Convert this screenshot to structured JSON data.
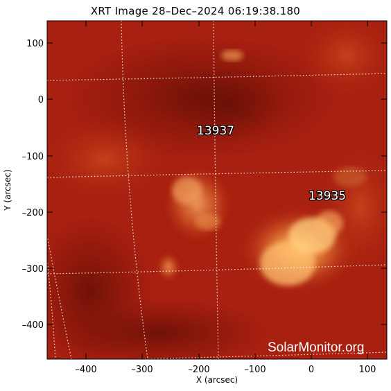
{
  "title": "XRT Image 28–Dec–2024 06:19:38.180",
  "axes": {
    "xlabel": "X (arcsec)",
    "ylabel": "Y (arcsec)",
    "x_ticks": [
      "–400",
      "–300",
      "–200",
      "–100",
      "0",
      "100"
    ],
    "y_ticks": [
      "100",
      "0",
      "–100",
      "–200",
      "–300",
      "–400"
    ],
    "xlim": [
      -470,
      132
    ],
    "ylim": [
      -460,
      138
    ]
  },
  "regions": [
    {
      "number": "13937"
    },
    {
      "number": "13935"
    }
  ],
  "watermark": "SolarMonitor.org",
  "colors": {
    "background_red": "#a82010",
    "dark_region": "#7a1208",
    "bright_loop": "#f5a050",
    "grid": "#ffffff"
  }
}
